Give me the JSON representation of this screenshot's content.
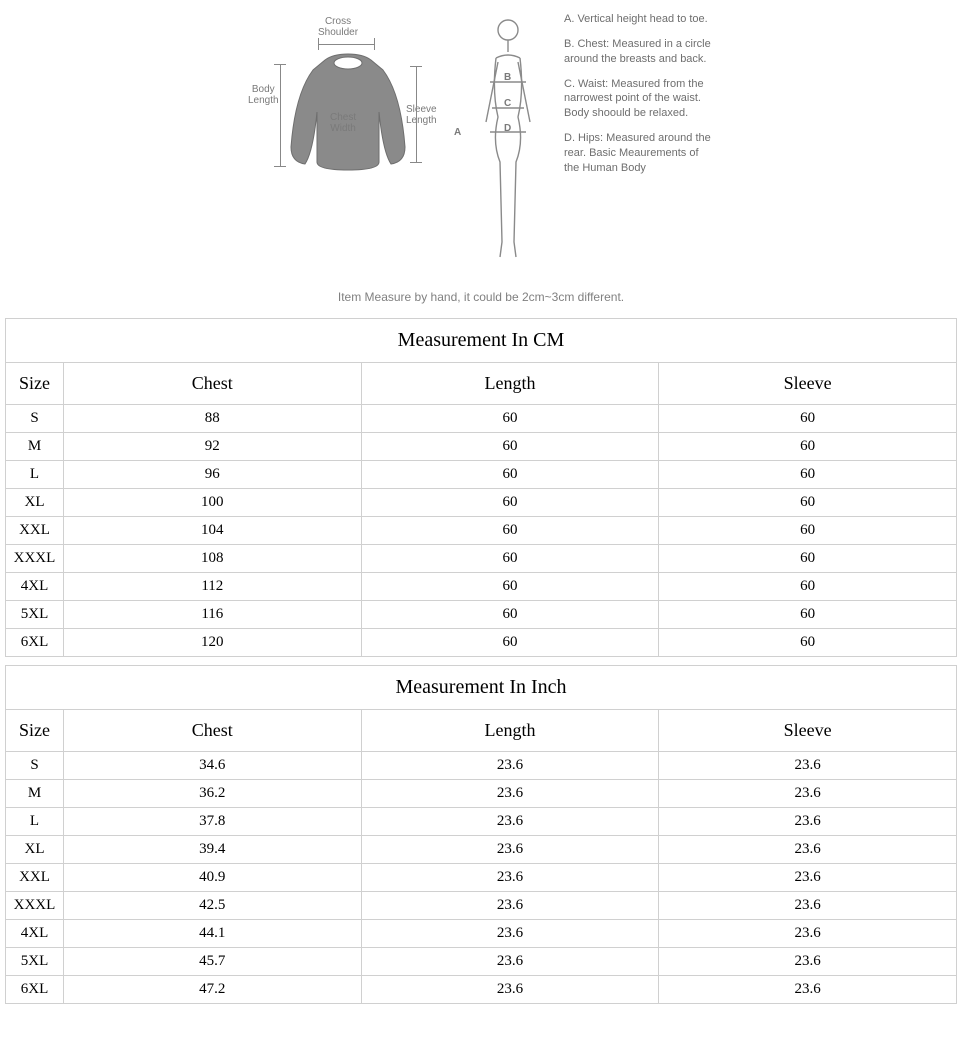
{
  "diagram": {
    "shirt_labels": {
      "cross_shoulder": "Cross\nShoulder",
      "body_length": "Body\nLength",
      "chest_width": "Chest\nWidth",
      "sleeve_length": "Sleeve\nLength"
    },
    "body_labels": {
      "A": "A",
      "B": "B",
      "C": "C",
      "D": "D"
    },
    "legend": {
      "a": "A. Vertical height head to toe.",
      "b": "B. Chest: Measured in a circle around the breasts and back.",
      "c": "C. Waist: Measured from the narrowest point of the waist. Body shoould be relaxed.",
      "d": "D. Hips: Measured around the rear. Basic Meaurements of the Human Body"
    },
    "line_color": "#888888",
    "label_color": "#7a7a7a",
    "legend_color": "#6e6e6e"
  },
  "disclaimer": "Item Measure by hand, it could be 2cm~3cm different.",
  "tables": [
    {
      "title": "Measurement In CM",
      "columns": [
        "Size",
        "Chest",
        "Length",
        "Sleeve"
      ],
      "rows": [
        [
          "S",
          "88",
          "60",
          "60"
        ],
        [
          "M",
          "92",
          "60",
          "60"
        ],
        [
          "L",
          "96",
          "60",
          "60"
        ],
        [
          "XL",
          "100",
          "60",
          "60"
        ],
        [
          "XXL",
          "104",
          "60",
          "60"
        ],
        [
          "XXXL",
          "108",
          "60",
          "60"
        ],
        [
          "4XL",
          "112",
          "60",
          "60"
        ],
        [
          "5XL",
          "116",
          "60",
          "60"
        ],
        [
          "6XL",
          "120",
          "60",
          "60"
        ]
      ]
    },
    {
      "title": "Measurement In Inch",
      "columns": [
        "Size",
        "Chest",
        "Length",
        "Sleeve"
      ],
      "rows": [
        [
          "S",
          "34.6",
          "23.6",
          "23.6"
        ],
        [
          "M",
          "36.2",
          "23.6",
          "23.6"
        ],
        [
          "L",
          "37.8",
          "23.6",
          "23.6"
        ],
        [
          "XL",
          "39.4",
          "23.6",
          "23.6"
        ],
        [
          "XXL",
          "40.9",
          "23.6",
          "23.6"
        ],
        [
          "XXXL",
          "42.5",
          "23.6",
          "23.6"
        ],
        [
          "4XL",
          "44.1",
          "23.6",
          "23.6"
        ],
        [
          "5XL",
          "45.7",
          "23.6",
          "23.6"
        ],
        [
          "6XL",
          "47.2",
          "23.6",
          "23.6"
        ]
      ]
    }
  ],
  "style": {
    "border_color": "#d0d0d0",
    "title_fontsize": 20,
    "header_fontsize": 18,
    "data_fontsize": 15,
    "col_widths": {
      "size": 58,
      "meas": 298
    },
    "background": "#ffffff",
    "text_color": "#000000"
  }
}
